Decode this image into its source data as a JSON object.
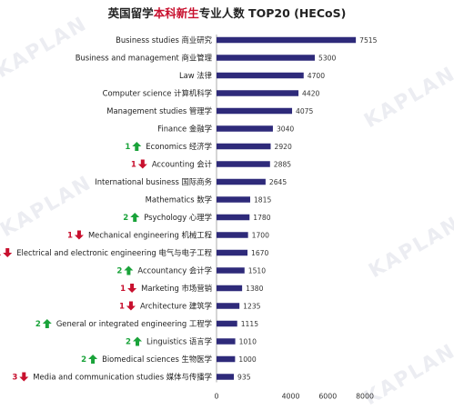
{
  "title_parts": {
    "before": "英国留学",
    "highlight": "本科新生",
    "after": "专业人数 TOP20 (HECoS)"
  },
  "watermark": "KAPLAN",
  "colors": {
    "bar": "#2e2a7a",
    "up": "#1aa33a",
    "down": "#c8102e",
    "highlight": "#c8102e"
  },
  "chart_data": {
    "type": "bar",
    "orientation": "horizontal",
    "title": "英国留学本科新生专业人数 TOP20 (HECoS)",
    "categories": [
      "Business studies 商业研究",
      "Business and management 商业管理",
      "Law 法律",
      "Computer science 计算机科学",
      "Management studies 管理学",
      "Finance 金融学",
      "Economics 经济学",
      "Accounting 会计",
      "International business 国际商务",
      "Mathematics 数学",
      "Psychology 心理学",
      "Mechanical engineering 机械工程",
      "Electrical and electronic engineering 电气与电子工程",
      "Accountancy 会计学",
      "Marketing 市场营销",
      "Architecture 建筑学",
      "General or integrated engineering 工程学",
      "Linguistics 语言学",
      "Biomedical sciences 生物医学",
      "Media and communication studies 媒体与传播学"
    ],
    "values": [
      7515,
      5300,
      4700,
      4420,
      4075,
      3040,
      2920,
      2885,
      2645,
      1815,
      1780,
      1700,
      1670,
      1510,
      1380,
      1235,
      1115,
      1010,
      1000,
      935
    ],
    "rank_change": [
      null,
      null,
      null,
      null,
      null,
      null,
      {
        "n": 1,
        "dir": "up"
      },
      {
        "n": 1,
        "dir": "down"
      },
      null,
      null,
      {
        "n": 2,
        "dir": "up"
      },
      {
        "n": 1,
        "dir": "down"
      },
      {
        "n": 1,
        "dir": "down"
      },
      {
        "n": 2,
        "dir": "up"
      },
      {
        "n": 1,
        "dir": "down"
      },
      {
        "n": 1,
        "dir": "down"
      },
      {
        "n": 2,
        "dir": "up"
      },
      {
        "n": 2,
        "dir": "up"
      },
      {
        "n": 2,
        "dir": "up"
      },
      {
        "n": 3,
        "dir": "down"
      }
    ],
    "x_ticks": [
      0,
      4000,
      6000,
      8000
    ],
    "xlim": [
      0,
      8000
    ],
    "grid": false,
    "legend": "none"
  }
}
